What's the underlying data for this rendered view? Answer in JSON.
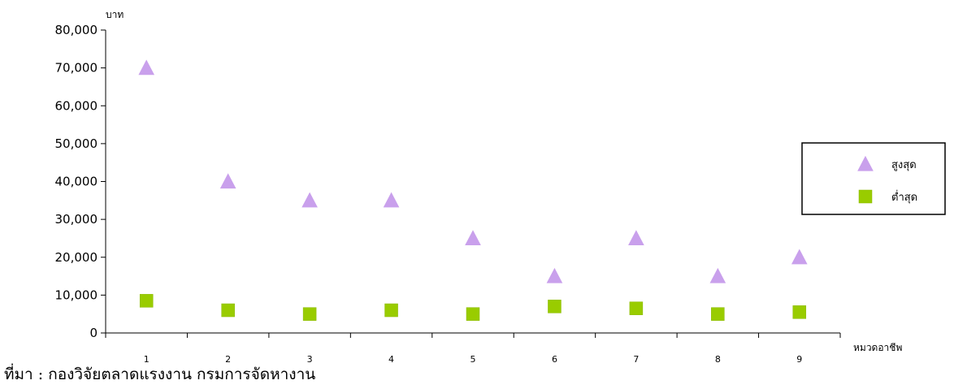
{
  "chart_data": {
    "type": "scatter",
    "title": "",
    "xlabel": "หมวดอาชีพ",
    "ylabel": "บาท",
    "categories": [
      "1",
      "2",
      "3",
      "4",
      "5",
      "6",
      "7",
      "8",
      "9"
    ],
    "ylim": [
      0,
      80000
    ],
    "yticks": [
      "0",
      "10,000",
      "20,000",
      "30,000",
      "40,000",
      "50,000",
      "60,000",
      "70,000",
      "80,000"
    ],
    "grid": false,
    "legend_position": "right",
    "series": [
      {
        "name": "สูงสุด",
        "marker": "triangle",
        "color": "#c9a0ec",
        "values": [
          70000,
          40000,
          35000,
          35000,
          25000,
          15000,
          25000,
          15000,
          20000
        ]
      },
      {
        "name": "ต่ำสุด",
        "marker": "square",
        "color": "#99cc00",
        "values": [
          8500,
          6000,
          5000,
          6000,
          5000,
          7000,
          6500,
          5000,
          5500
        ]
      }
    ]
  },
  "source": "ที่มา : กองวิจัยตลาดแรงงาน กรมการจัดหางาน"
}
